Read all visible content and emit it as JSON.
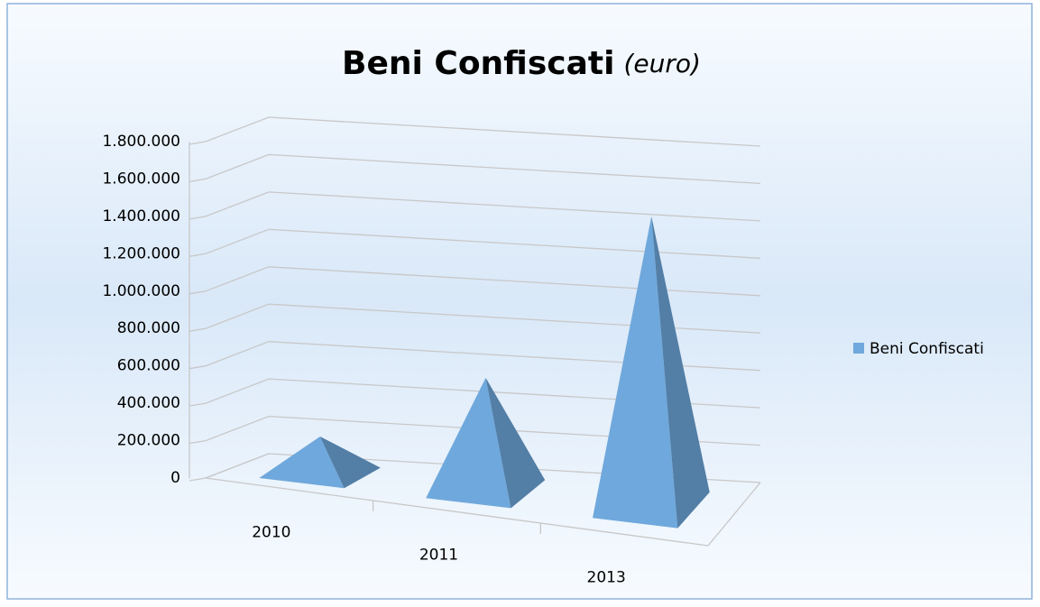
{
  "chart_data": {
    "type": "pyramid3d",
    "title": "Beni Confiscati",
    "subtitle": "(euro)",
    "categories": [
      "2010",
      "2011",
      "2013"
    ],
    "series": [
      {
        "name": "Beni Confiscati",
        "color": "#6fa8dc",
        "values": [
          200000,
          600000,
          1550000
        ]
      }
    ],
    "ylim": [
      0,
      1800000
    ],
    "yticks": [
      0,
      {
        "value": 200000,
        "label": "200.000"
      },
      {
        "value": 400000,
        "label": "400.000"
      },
      {
        "value": 600000,
        "label": "600.000"
      },
      {
        "value": 800000,
        "label": "800.000"
      },
      {
        "value": 1000000,
        "label": "1.000.000"
      },
      {
        "value": 1200000,
        "label": "1.200.000"
      },
      {
        "value": 1400000,
        "label": "1.400.000"
      },
      {
        "value": 1600000,
        "label": "1.600.000"
      },
      {
        "value": 1800000,
        "label": "1.800.000"
      }
    ],
    "grid": true,
    "legend": "right"
  }
}
